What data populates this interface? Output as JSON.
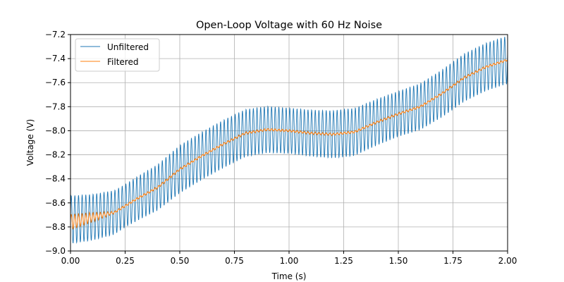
{
  "chart_data": {
    "type": "line",
    "title": "Open-Loop Voltage with 60 Hz Noise",
    "xlabel": "Time (s)",
    "ylabel": "Voltage (V)",
    "xlim": [
      0.0,
      2.0
    ],
    "ylim": [
      -9.0,
      -7.2
    ],
    "xticks": [
      0.0,
      0.25,
      0.5,
      0.75,
      1.0,
      1.25,
      1.5,
      1.75,
      2.0
    ],
    "xtick_labels": [
      "0.00",
      "0.25",
      "0.50",
      "0.75",
      "1.00",
      "1.25",
      "1.50",
      "1.75",
      "2.00"
    ],
    "yticks": [
      -9.0,
      -8.8,
      -8.6,
      -8.4,
      -8.2,
      -8.0,
      -7.8,
      -7.6,
      -7.4,
      -7.2
    ],
    "ytick_labels": [
      "−9.0",
      "−8.8",
      "−8.6",
      "−8.4",
      "−8.2",
      "−8.0",
      "−7.8",
      "−7.6",
      "−7.4",
      "−7.2"
    ],
    "grid": true,
    "legend_position": "upper-left",
    "noise_frequency_hz": 60,
    "series": [
      {
        "name": "Unfiltered",
        "color": "#1f77b4",
        "description_values": {
          "center": {
            "t": [
              0.0,
              0.1,
              0.2,
              0.3,
              0.4,
              0.5,
              0.6,
              0.7,
              0.8,
              0.9,
              1.0,
              1.1,
              1.2,
              1.3,
              1.4,
              1.5,
              1.6,
              1.7,
              1.8,
              1.9,
              2.0
            ],
            "v": [
              -8.74,
              -8.72,
              -8.68,
              -8.57,
              -8.47,
              -8.32,
              -8.21,
              -8.11,
              -8.02,
              -7.99,
              -8.0,
              -8.02,
              -8.03,
              -8.01,
              -7.93,
              -7.86,
              -7.8,
              -7.69,
              -7.56,
              -7.47,
              -7.41
            ]
          },
          "amplitude": {
            "t": [
              0.0,
              0.25,
              0.5,
              0.75,
              1.0,
              1.25,
              1.5,
              1.75,
              2.0
            ],
            "a": [
              0.2,
              0.18,
              0.2,
              0.2,
              0.19,
              0.2,
              0.19,
              0.2,
              0.2
            ]
          }
        }
      },
      {
        "name": "Filtered",
        "color": "#ff7f0e",
        "description_values": {
          "t": [
            0.0,
            0.1,
            0.2,
            0.3,
            0.4,
            0.5,
            0.6,
            0.7,
            0.8,
            0.9,
            1.0,
            1.1,
            1.2,
            1.3,
            1.4,
            1.5,
            1.6,
            1.7,
            1.8,
            1.9,
            2.0
          ],
          "v": [
            -8.76,
            -8.72,
            -8.68,
            -8.57,
            -8.47,
            -8.32,
            -8.21,
            -8.11,
            -8.02,
            -7.99,
            -8.0,
            -8.02,
            -8.03,
            -8.01,
            -7.93,
            -7.86,
            -7.8,
            -7.69,
            -7.56,
            -7.47,
            -7.41
          ]
        }
      }
    ]
  }
}
